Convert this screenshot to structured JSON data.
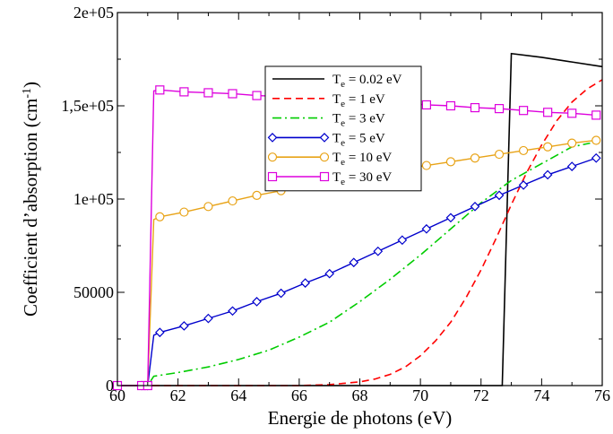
{
  "chart_data": {
    "type": "line",
    "title": "",
    "xlabel": "Energie de photons (eV)",
    "ylabel_main": "Coefficient d’absorption (cm",
    "ylabel_sup": "-1",
    "ylabel_close": ")",
    "xlim": [
      60,
      76
    ],
    "ylim": [
      0,
      200000
    ],
    "x_ticks": [
      60,
      62,
      64,
      66,
      68,
      70,
      72,
      74,
      76
    ],
    "x_tick_labels": [
      "60",
      "62",
      "64",
      "66",
      "68",
      "70",
      "72",
      "74",
      "76"
    ],
    "y_ticks": [
      0,
      50000,
      100000,
      150000,
      200000
    ],
    "y_tick_labels": [
      "0",
      "50000",
      "1e+05",
      "1,5e+05",
      "2e+05"
    ],
    "grid": false,
    "legend_position": "top-center",
    "series": [
      {
        "label_main": "T",
        "label_sub": "e",
        "label_rest": " = 0.02 eV",
        "color": "#000000",
        "dash": "none",
        "marker": "none",
        "x": [
          60.0,
          60.8,
          61.0,
          62.0,
          64.0,
          66.0,
          68.0,
          70.0,
          72.0,
          72.5,
          72.7,
          73.0,
          74.0,
          75.0,
          76.0
        ],
        "y": [
          0,
          0,
          0,
          0,
          0,
          0,
          0,
          0,
          0,
          0,
          0,
          178000,
          176000,
          173500,
          171000
        ]
      },
      {
        "label_main": "T",
        "label_sub": "e",
        "label_rest": " = 1 eV",
        "color": "#ff0000",
        "dash": "8,5",
        "marker": "none",
        "x": [
          60.0,
          60.8,
          61.0,
          62.0,
          64.0,
          66.0,
          67.0,
          68.0,
          68.5,
          69.0,
          69.5,
          70.0,
          70.5,
          71.0,
          71.5,
          72.0,
          72.5,
          73.0,
          73.5,
          74.0,
          74.5,
          75.0,
          75.5,
          76.0
        ],
        "y": [
          0,
          0,
          0,
          0,
          0,
          0,
          500,
          2000,
          3500,
          6000,
          10000,
          16000,
          24000,
          34000,
          47000,
          62000,
          79000,
          97000,
          114000,
          129000,
          142000,
          152000,
          159000,
          164000
        ]
      },
      {
        "label_main": "T",
        "label_sub": "e",
        "label_rest": " = 3 eV",
        "color": "#00cc00",
        "dash": "10,4,2,4",
        "marker": "none",
        "x": [
          60.0,
          60.8,
          61.0,
          61.2,
          62.0,
          63.0,
          64.0,
          65.0,
          66.0,
          67.0,
          68.0,
          69.0,
          70.0,
          71.0,
          72.0,
          73.0,
          74.0,
          75.0,
          75.6
        ],
        "y": [
          0,
          0,
          0,
          5000,
          7000,
          10000,
          14000,
          19000,
          26000,
          34000,
          45000,
          57000,
          70000,
          84000,
          98000,
          110000,
          119000,
          128000,
          130000
        ]
      },
      {
        "label_main": "T",
        "label_sub": "e",
        "label_rest": " = 5 eV",
        "color": "#0000cc",
        "dash": "none",
        "marker": "diamond",
        "x": [
          60.0,
          60.8,
          61.0,
          61.2,
          61.4,
          62.2,
          63.0,
          63.8,
          64.6,
          65.4,
          66.2,
          67.0,
          67.8,
          68.6,
          69.4,
          70.2,
          71.0,
          71.8,
          72.6,
          73.4,
          74.2,
          75.0,
          75.8
        ],
        "y": [
          0,
          0,
          0,
          27000,
          28500,
          32000,
          36000,
          40000,
          45000,
          49500,
          55000,
          60000,
          66000,
          72000,
          78000,
          84000,
          90000,
          96000,
          102000,
          107500,
          113000,
          117500,
          122000
        ]
      },
      {
        "label_main": "T",
        "label_sub": "e",
        "label_rest": " = 10 eV",
        "color": "#e8a317",
        "dash": "none",
        "marker": "circle",
        "x": [
          60.0,
          60.8,
          61.0,
          61.2,
          61.4,
          62.2,
          63.0,
          63.8,
          64.6,
          65.4,
          66.2,
          67.0,
          67.8,
          68.6,
          69.4,
          70.2,
          71.0,
          71.8,
          72.6,
          73.4,
          74.2,
          75.0,
          75.8
        ],
        "y": [
          0,
          0,
          0,
          89000,
          90500,
          93000,
          96000,
          99000,
          102000,
          104500,
          107000,
          109500,
          112000,
          114000,
          116000,
          118000,
          120000,
          122000,
          124000,
          126000,
          128000,
          130000,
          131500
        ]
      },
      {
        "label_main": "T",
        "label_sub": "e",
        "label_rest": " = 30 eV",
        "color": "#dd00dd",
        "dash": "none",
        "marker": "square",
        "x": [
          60.0,
          60.8,
          61.0,
          61.2,
          61.4,
          62.2,
          63.0,
          63.8,
          64.6,
          65.4,
          66.2,
          67.0,
          67.8,
          68.6,
          69.4,
          70.2,
          71.0,
          71.8,
          72.6,
          73.4,
          74.2,
          75.0,
          75.8
        ],
        "y": [
          0,
          0,
          0,
          158000,
          158500,
          157500,
          157000,
          156500,
          155500,
          155000,
          154000,
          153500,
          153000,
          152000,
          151500,
          150500,
          150000,
          149000,
          148500,
          147500,
          146500,
          146000,
          145000
        ]
      }
    ]
  }
}
